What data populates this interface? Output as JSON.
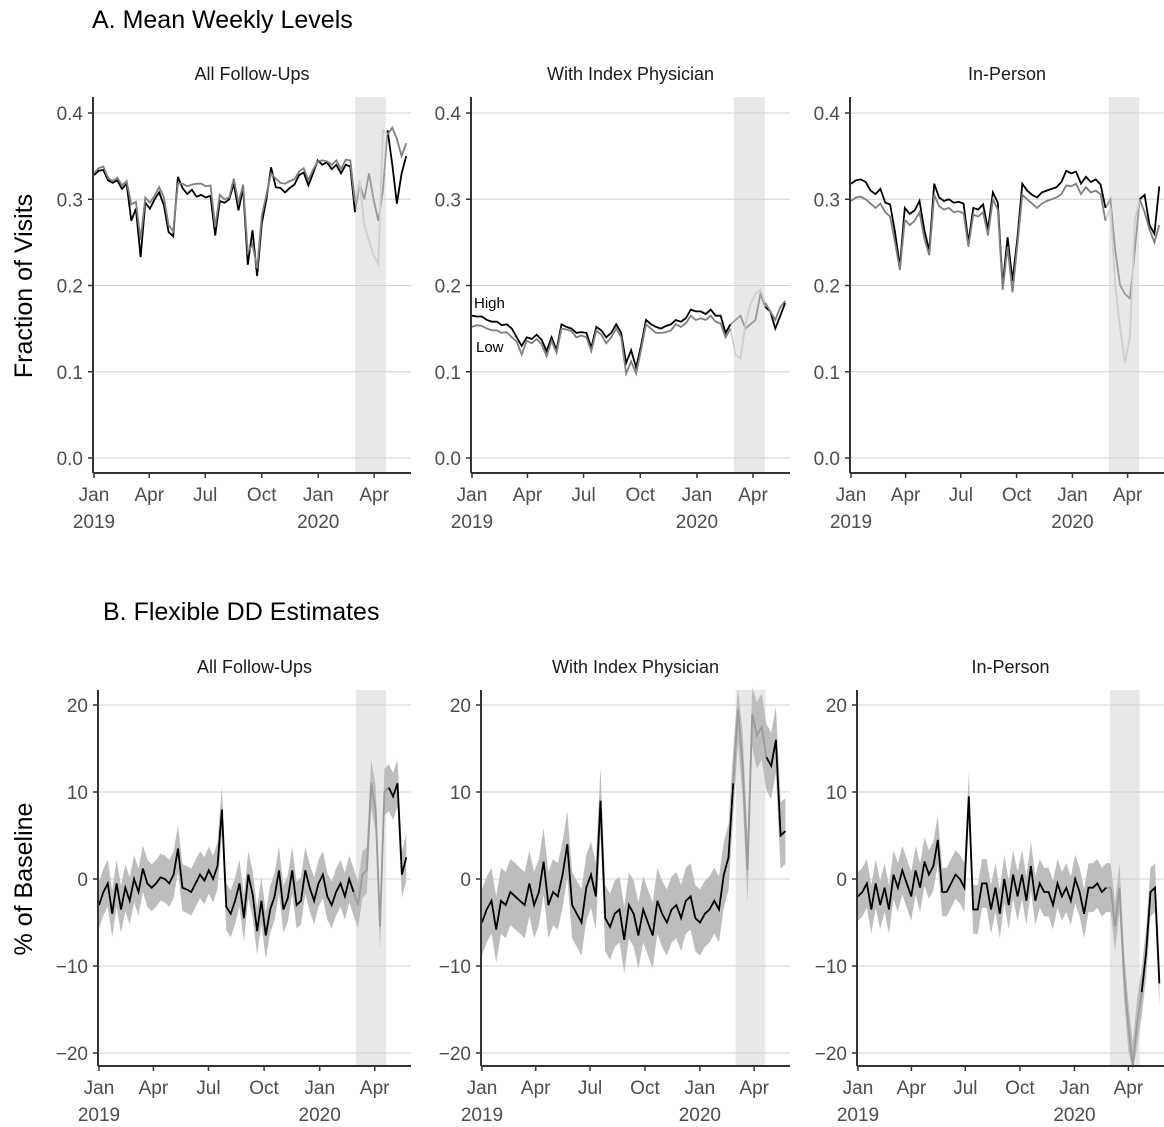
{
  "sections": {
    "a_title": "A. Mean Weekly Levels",
    "b_title": "B. Flexible DD Estimates",
    "a_ylabel": "Fraction of Visits",
    "b_ylabel": "% of Baseline"
  },
  "x_ticks": {
    "months": [
      "Jan",
      "Apr",
      "Jul",
      "Oct",
      "Jan",
      "Apr"
    ],
    "years": [
      "2019",
      "2020"
    ]
  },
  "colors": {
    "high": "#000000",
    "low": "#7f7f7f",
    "shade": "#e8e8e8",
    "ribbon": "#bdbdbd",
    "faded_high": "#9a9a9a",
    "faded_low": "#cfcfcf"
  },
  "chart_data": [
    {
      "type": "line",
      "panel": "All Follow-Ups",
      "section": "A",
      "ylim": [
        -0.02,
        0.42
      ],
      "yticks": [
        "0.0",
        "0.1",
        "0.2",
        "0.3",
        "0.4"
      ],
      "x_range": [
        "2019-01-01",
        "2020-05-31"
      ],
      "shaded_period": [
        "2020-03-01",
        "2020-04-20"
      ],
      "series": [
        {
          "key": "high",
          "values": [
            0.328,
            0.333,
            0.334,
            0.322,
            0.319,
            0.322,
            0.312,
            0.318,
            0.275,
            0.289,
            0.233,
            0.296,
            0.289,
            0.3,
            0.308,
            0.293,
            0.262,
            0.257,
            0.326,
            0.313,
            0.306,
            0.311,
            0.303,
            0.305,
            0.302,
            0.304,
            0.258,
            0.298,
            0.296,
            0.3,
            0.318,
            0.287,
            0.313,
            0.224,
            0.264,
            0.211,
            0.272,
            0.3,
            0.337,
            0.314,
            0.313,
            0.308,
            0.313,
            0.317,
            0.328,
            0.331,
            0.316,
            0.33,
            0.345,
            0.34,
            0.343,
            0.335,
            0.34,
            0.33,
            0.34,
            0.338,
            0.285,
            0.318,
            0.3,
            0.33,
            0.3,
            0.275,
            0.31,
            0.38,
            0.34,
            0.295,
            0.33,
            0.35
          ]
        },
        {
          "key": "low",
          "values": [
            0.33,
            0.336,
            0.338,
            0.325,
            0.321,
            0.325,
            0.316,
            0.321,
            0.294,
            0.297,
            0.253,
            0.302,
            0.296,
            0.304,
            0.314,
            0.302,
            0.27,
            0.263,
            0.318,
            0.318,
            0.315,
            0.317,
            0.318,
            0.318,
            0.315,
            0.316,
            0.268,
            0.305,
            0.3,
            0.302,
            0.324,
            0.296,
            0.317,
            0.238,
            0.248,
            0.22,
            0.281,
            0.305,
            0.33,
            0.324,
            0.319,
            0.318,
            0.321,
            0.323,
            0.332,
            0.336,
            0.322,
            0.334,
            0.344,
            0.345,
            0.344,
            0.34,
            0.345,
            0.335,
            0.346,
            0.345,
            0.297,
            0.322,
            0.27,
            0.252,
            0.235,
            0.225,
            0.38,
            0.375,
            0.383,
            0.37,
            0.35,
            0.365
          ]
        }
      ]
    },
    {
      "type": "line",
      "panel": "With Index Physician",
      "section": "A",
      "ylim": [
        -0.02,
        0.42
      ],
      "yticks": [
        "0.0",
        "0.1",
        "0.2",
        "0.3",
        "0.4"
      ],
      "x_range": [
        "2019-01-01",
        "2020-05-31"
      ],
      "shaded_period": [
        "2020-03-01",
        "2020-04-20"
      ],
      "annotations": [
        "High",
        "Low"
      ],
      "series": [
        {
          "key": "high",
          "values": [
            0.165,
            0.164,
            0.164,
            0.16,
            0.158,
            0.158,
            0.154,
            0.155,
            0.15,
            0.14,
            0.13,
            0.14,
            0.138,
            0.143,
            0.137,
            0.124,
            0.14,
            0.125,
            0.155,
            0.152,
            0.15,
            0.145,
            0.146,
            0.145,
            0.128,
            0.152,
            0.148,
            0.14,
            0.145,
            0.155,
            0.145,
            0.11,
            0.125,
            0.105,
            0.13,
            0.16,
            0.155,
            0.152,
            0.15,
            0.153,
            0.155,
            0.16,
            0.158,
            0.162,
            0.172,
            0.17,
            0.17,
            0.167,
            0.172,
            0.165,
            0.165,
            0.145,
            0.155,
            0.16,
            0.165,
            0.15,
            0.155,
            0.16,
            0.19,
            0.175,
            0.17,
            0.15,
            0.165,
            0.18
          ]
        },
        {
          "key": "low",
          "values": [
            0.152,
            0.154,
            0.153,
            0.15,
            0.148,
            0.148,
            0.145,
            0.146,
            0.14,
            0.135,
            0.12,
            0.136,
            0.133,
            0.138,
            0.132,
            0.118,
            0.136,
            0.122,
            0.15,
            0.149,
            0.147,
            0.14,
            0.142,
            0.14,
            0.124,
            0.148,
            0.143,
            0.133,
            0.14,
            0.15,
            0.14,
            0.098,
            0.112,
            0.098,
            0.125,
            0.155,
            0.15,
            0.145,
            0.145,
            0.146,
            0.148,
            0.155,
            0.152,
            0.156,
            0.165,
            0.16,
            0.162,
            0.16,
            0.165,
            0.158,
            0.156,
            0.14,
            0.15,
            0.12,
            0.115,
            0.155,
            0.178,
            0.19,
            0.195,
            0.18,
            0.17,
            0.16,
            0.175,
            0.182
          ]
        }
      ]
    },
    {
      "type": "line",
      "panel": "In-Person",
      "section": "A",
      "ylim": [
        -0.02,
        0.42
      ],
      "yticks": [
        "0.0",
        "0.1",
        "0.2",
        "0.3",
        "0.4"
      ],
      "x_range": [
        "2019-01-01",
        "2020-05-31"
      ],
      "shaded_period": [
        "2020-03-01",
        "2020-04-20"
      ],
      "series": [
        {
          "key": "high",
          "values": [
            0.318,
            0.322,
            0.323,
            0.32,
            0.31,
            0.306,
            0.312,
            0.296,
            0.294,
            0.262,
            0.222,
            0.29,
            0.283,
            0.287,
            0.298,
            0.264,
            0.24,
            0.318,
            0.302,
            0.298,
            0.3,
            0.296,
            0.297,
            0.295,
            0.25,
            0.29,
            0.288,
            0.294,
            0.265,
            0.308,
            0.296,
            0.2,
            0.256,
            0.205,
            0.255,
            0.318,
            0.31,
            0.305,
            0.302,
            0.308,
            0.31,
            0.312,
            0.314,
            0.32,
            0.333,
            0.33,
            0.332,
            0.318,
            0.326,
            0.32,
            0.323,
            0.317,
            0.29,
            0.3,
            0.24,
            0.2,
            0.19,
            0.185,
            0.24,
            0.3,
            0.305,
            0.27,
            0.26,
            0.315
          ]
        },
        {
          "key": "low",
          "values": [
            0.298,
            0.302,
            0.303,
            0.3,
            0.295,
            0.29,
            0.295,
            0.285,
            0.28,
            0.25,
            0.218,
            0.276,
            0.27,
            0.275,
            0.285,
            0.254,
            0.235,
            0.305,
            0.292,
            0.288,
            0.29,
            0.285,
            0.286,
            0.284,
            0.245,
            0.282,
            0.28,
            0.285,
            0.258,
            0.3,
            0.288,
            0.195,
            0.245,
            0.192,
            0.247,
            0.305,
            0.3,
            0.295,
            0.29,
            0.295,
            0.298,
            0.3,
            0.302,
            0.306,
            0.316,
            0.315,
            0.318,
            0.306,
            0.314,
            0.308,
            0.31,
            0.306,
            0.275,
            0.29,
            0.2,
            0.15,
            0.11,
            0.14,
            0.275,
            0.3,
            0.285,
            0.265,
            0.25,
            0.27
          ]
        }
      ]
    },
    {
      "type": "line",
      "panel": "All Follow-Ups",
      "section": "B",
      "ylim": [
        -22,
        22
      ],
      "yticks": [
        "−20",
        "−10",
        "0",
        "10",
        "20"
      ],
      "x_range": [
        "2019-01-01",
        "2020-05-31"
      ],
      "shaded_period": [
        "2020-03-01",
        "2020-04-20"
      ],
      "series": [
        {
          "key": "estimate",
          "ci_halfwidth": 2.7,
          "values": [
            -3.0,
            -1.5,
            -0.5,
            -4.0,
            -0.5,
            -3.5,
            -1.0,
            -2.5,
            0.0,
            -1.5,
            1.2,
            -0.5,
            -1.0,
            -0.5,
            0.2,
            0.0,
            -0.5,
            0.5,
            3.5,
            -1.0,
            -1.2,
            -1.5,
            -0.5,
            0.5,
            -0.2,
            1.0,
            0.0,
            1.5,
            8.0,
            -3.2,
            -4.0,
            -2.5,
            -0.5,
            -4.5,
            0.5,
            -1.8,
            -6.0,
            -2.5,
            -6.5,
            -3.5,
            -2.0,
            1.0,
            -3.5,
            -2.2,
            1.0,
            -3.0,
            -2.5,
            1.0,
            -1.0,
            -2.5,
            -0.5,
            0.5,
            -2.0,
            -3.0,
            -1.5,
            -0.5,
            -2.0,
            0.0,
            -1.5,
            -3.0,
            0.5,
            1.0,
            11.0,
            8.0,
            -5.5,
            10.0,
            10.5,
            9.5,
            11.0,
            0.5,
            2.5
          ]
        }
      ]
    },
    {
      "type": "line",
      "panel": "With Index Physician",
      "section": "B",
      "ylim": [
        -22,
        22
      ],
      "yticks": [
        "−20",
        "−10",
        "0",
        "10",
        "20"
      ],
      "x_range": [
        "2019-01-01",
        "2020-05-31"
      ],
      "shaded_period": [
        "2020-03-01",
        "2020-04-20"
      ],
      "series": [
        {
          "key": "estimate",
          "ci_halfwidth": 3.8,
          "values": [
            -5.0,
            -3.5,
            -2.5,
            -5.8,
            -2.5,
            -3.0,
            -1.5,
            -2.0,
            -2.5,
            -3.0,
            -0.5,
            -3.0,
            -1.5,
            2.0,
            -3.0,
            -1.5,
            -2.0,
            0.5,
            4.0,
            -3.0,
            -4.0,
            -5.0,
            -1.0,
            0.5,
            -2.0,
            9.0,
            -4.5,
            -5.5,
            -4.0,
            -3.5,
            -7.0,
            -3.0,
            -4.0,
            -6.5,
            -3.5,
            -5.0,
            -6.5,
            -2.5,
            -4.0,
            -5.0,
            -3.5,
            -3.0,
            -4.5,
            -2.5,
            -2.0,
            -4.5,
            -5.0,
            -4.0,
            -3.5,
            -2.5,
            -3.5,
            0.5,
            2.5,
            11.0,
            19.5,
            13.0,
            1.0,
            19.0,
            16.5,
            17.5,
            14.0,
            13.0,
            16.0,
            5.0,
            5.5
          ]
        }
      ]
    },
    {
      "type": "line",
      "panel": "In-Person",
      "section": "B",
      "ylim": [
        -22,
        22
      ],
      "yticks": [
        "−20",
        "−10",
        "0",
        "10",
        "20"
      ],
      "x_range": [
        "2019-01-01",
        "2020-05-31"
      ],
      "shaded_period": [
        "2020-03-01",
        "2020-04-20"
      ],
      "series": [
        {
          "key": "estimate",
          "ci_halfwidth": 2.8,
          "values": [
            -2.0,
            -1.5,
            -0.5,
            -3.5,
            -0.5,
            -3.0,
            -1.0,
            -3.5,
            0.5,
            -1.0,
            1.0,
            -0.5,
            -2.0,
            1.0,
            -1.0,
            2.0,
            0.5,
            1.5,
            4.5,
            -1.5,
            -1.5,
            -0.5,
            0.5,
            0.0,
            -1.0,
            9.5,
            -3.5,
            -3.5,
            -0.5,
            -0.5,
            -3.5,
            -1.0,
            -4.0,
            0.0,
            -3.0,
            0.5,
            -2.0,
            0.5,
            -2.5,
            1.5,
            -2.5,
            -0.5,
            -1.5,
            -1.5,
            -3.0,
            -0.5,
            -2.0,
            -1.0,
            -2.5,
            0.0,
            -1.5,
            -4.0,
            -1.0,
            -1.0,
            -0.5,
            -1.5,
            -1.0,
            -1.0,
            -5.5,
            -1.0,
            -11.0,
            -17.0,
            -21.5,
            -16.5,
            -13.0,
            -8.5,
            -1.5,
            -1.0,
            -12.0
          ]
        }
      ]
    }
  ]
}
